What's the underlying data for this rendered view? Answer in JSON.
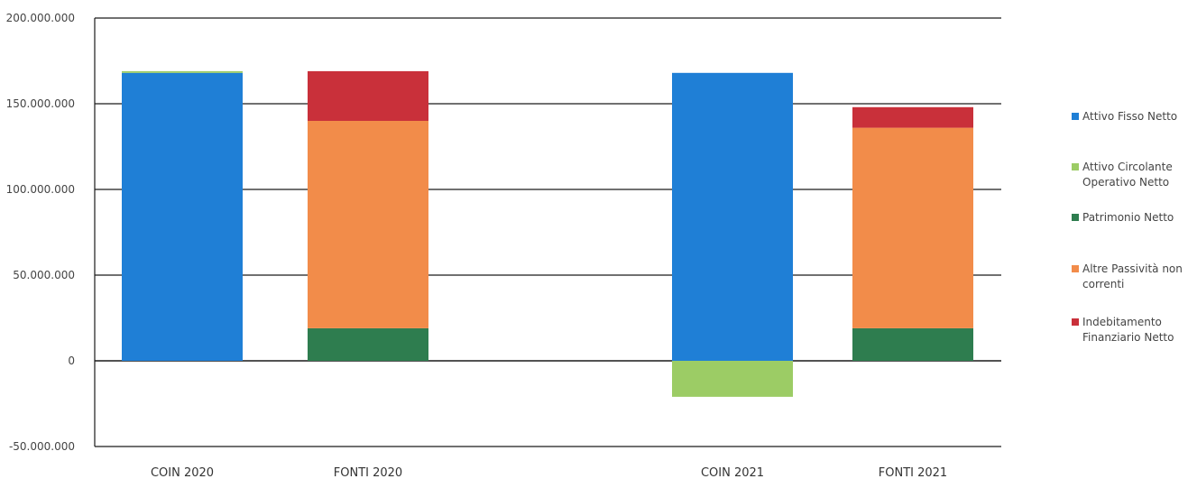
{
  "chart_data": {
    "type": "bar",
    "stacked": true,
    "title": "",
    "xlabel": "",
    "ylabel": "",
    "ylim": [
      -50000000,
      200000000
    ],
    "grid": true,
    "legend_position": "right",
    "y_ticks": [
      {
        "value": 200000000,
        "label": "200.000.000"
      },
      {
        "value": 150000000,
        "label": "150.000.000"
      },
      {
        "value": 100000000,
        "label": "100.000.000"
      },
      {
        "value": 50000000,
        "label": "50.000.000"
      },
      {
        "value": 0,
        "label": "0"
      },
      {
        "value": -50000000,
        "label": "-50.000.000"
      }
    ],
    "categories": [
      "COIN 2020",
      "FONTI 2020",
      "COIN 2021",
      "FONTI 2021"
    ],
    "series": [
      {
        "name": "Attivo Fisso Netto",
        "color": "#1f7fd6",
        "values": [
          168000000,
          0,
          168000000,
          0
        ]
      },
      {
        "name": "Attivo Circolante Operativo Netto",
        "color": "#9ccc65",
        "values": [
          1000000,
          0,
          -21000000,
          0
        ]
      },
      {
        "name": "Patrimonio Netto",
        "color": "#2e7d4f",
        "values": [
          0,
          19000000,
          0,
          19000000
        ]
      },
      {
        "name": "Altre Passività non correnti",
        "color": "#f28c4a",
        "values": [
          0,
          121000000,
          0,
          117000000
        ]
      },
      {
        "name": "Indebitamento Finanziario Netto",
        "color": "#c9303a",
        "values": [
          0,
          29000000,
          0,
          12000000
        ]
      }
    ],
    "legend_items": [
      {
        "lines": [
          "Attivo Fisso Netto"
        ],
        "color": "#1f7fd6"
      },
      {
        "lines": [
          "Attivo Circolante",
          "Operativo Netto"
        ],
        "color": "#9ccc65"
      },
      {
        "lines": [
          "Patrimonio Netto"
        ],
        "color": "#2e7d4f"
      },
      {
        "lines": [
          "Altre Passività non",
          "correnti"
        ],
        "color": "#f28c4a"
      },
      {
        "lines": [
          "Indebitamento",
          "Finanziario Netto"
        ],
        "color": "#c9303a"
      }
    ]
  }
}
